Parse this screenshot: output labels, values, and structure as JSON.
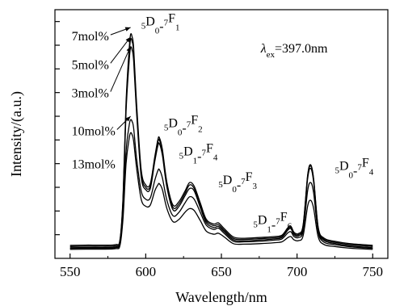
{
  "chart_data": {
    "type": "line",
    "xlabel": "Wavelength/nm",
    "ylabel": "Intensity/(a.u.)",
    "xlim": [
      540,
      760
    ],
    "ylim": [
      0,
      10.5
    ],
    "xticks": [
      550,
      600,
      650,
      700,
      750
    ],
    "yticks_count": 10,
    "y_tick_labels_shown": false,
    "excitation_label": {
      "symbol": "λ",
      "subscript": "ex",
      "value_text": "=397.0nm"
    },
    "transitions": [
      {
        "upper_level": "5",
        "upper_state": "D",
        "upper_sub": "0",
        "lower_level": "7",
        "lower_state": "F",
        "lower_sub": "1",
        "x": 597,
        "y": 9.5
      },
      {
        "upper_level": "5",
        "upper_state": "D",
        "upper_sub": "0",
        "lower_level": "7",
        "lower_state": "F",
        "lower_sub": "2",
        "x": 612,
        "y": 5.2
      },
      {
        "upper_level": "5",
        "upper_state": "D",
        "upper_sub": "1",
        "lower_level": "7",
        "lower_state": "F",
        "lower_sub": "4",
        "x": 622,
        "y": 4.0
      },
      {
        "upper_level": "5",
        "upper_state": "D",
        "upper_sub": "0",
        "lower_level": "7",
        "lower_state": "F",
        "lower_sub": "3",
        "x": 648,
        "y": 2.8
      },
      {
        "upper_level": "5",
        "upper_state": "D",
        "upper_sub": "1",
        "lower_level": "7",
        "lower_state": "F",
        "lower_sub": "6",
        "x": 671,
        "y": 1.1
      },
      {
        "upper_level": "5",
        "upper_state": "D",
        "upper_sub": "0",
        "lower_level": "7",
        "lower_state": "F",
        "lower_sub": "4",
        "x": 725,
        "y": 3.4
      }
    ],
    "concentration_labels": [
      {
        "text": "7mol%",
        "x": 551,
        "y": 9.2,
        "arrow_to": [
          590,
          9.75
        ]
      },
      {
        "text": "5mol%",
        "x": 551,
        "y": 8.0,
        "arrow_to": [
          590,
          9.35
        ]
      },
      {
        "text": "3mol%",
        "x": 551,
        "y": 6.8,
        "arrow_to": [
          590,
          8.95
        ]
      },
      {
        "text": "10mol%",
        "x": 551,
        "y": 5.2,
        "arrow_to": [
          590,
          6.0
        ]
      },
      {
        "text": "13mol%",
        "x": 551,
        "y": 3.8,
        "arrow_to": null
      }
    ],
    "x_grid": [
      550,
      560,
      570,
      580,
      583,
      585,
      587,
      589,
      590,
      591,
      592,
      594,
      597,
      600,
      603,
      606,
      608,
      609,
      611,
      614,
      618,
      622,
      626,
      629,
      632,
      636,
      640,
      645,
      648,
      652,
      658,
      665,
      675,
      685,
      690,
      694,
      696,
      698,
      701,
      704,
      707,
      709,
      711,
      714,
      718,
      725,
      735,
      750
    ],
    "series": [
      {
        "values": [
          0.55,
          0.56,
          0.56,
          0.58,
          0.8,
          2.6,
          6.6,
          8.8,
          9.45,
          9.35,
          8.9,
          6.5,
          3.75,
          3.1,
          3.15,
          4.3,
          5.0,
          5.1,
          4.6,
          3.2,
          2.25,
          2.4,
          2.85,
          3.2,
          3.05,
          2.35,
          1.65,
          1.45,
          1.5,
          1.25,
          0.9,
          0.85,
          0.88,
          0.92,
          0.98,
          1.3,
          1.35,
          1.1,
          1.05,
          1.4,
          3.5,
          3.95,
          3.35,
          1.3,
          0.85,
          0.72,
          0.62,
          0.55
        ]
      },
      {
        "values": [
          0.5,
          0.51,
          0.51,
          0.53,
          0.75,
          2.5,
          6.4,
          8.6,
          9.25,
          9.15,
          8.7,
          6.3,
          3.6,
          3.0,
          3.05,
          4.2,
          4.9,
          5.0,
          4.5,
          3.1,
          2.15,
          2.3,
          2.75,
          3.1,
          2.95,
          2.25,
          1.58,
          1.38,
          1.42,
          1.18,
          0.84,
          0.8,
          0.83,
          0.87,
          0.93,
          1.25,
          1.3,
          1.05,
          1.0,
          1.35,
          3.45,
          3.9,
          3.3,
          1.25,
          0.8,
          0.68,
          0.58,
          0.5
        ]
      },
      {
        "values": [
          0.45,
          0.46,
          0.46,
          0.48,
          0.7,
          2.4,
          6.2,
          8.3,
          8.9,
          8.8,
          8.35,
          6.1,
          3.45,
          2.9,
          2.95,
          4.1,
          4.75,
          4.85,
          4.35,
          3.0,
          2.05,
          2.2,
          2.65,
          2.95,
          2.85,
          2.15,
          1.5,
          1.3,
          1.35,
          1.12,
          0.78,
          0.74,
          0.77,
          0.82,
          0.88,
          1.2,
          1.25,
          1.0,
          0.95,
          1.3,
          3.35,
          3.8,
          3.2,
          1.2,
          0.75,
          0.63,
          0.53,
          0.45
        ]
      },
      {
        "values": [
          0.42,
          0.43,
          0.43,
          0.45,
          0.62,
          1.9,
          4.5,
          5.6,
          5.85,
          5.78,
          5.5,
          4.2,
          2.85,
          2.5,
          2.55,
          3.3,
          3.7,
          3.75,
          3.4,
          2.45,
          1.8,
          1.95,
          2.35,
          2.6,
          2.5,
          1.95,
          1.4,
          1.22,
          1.28,
          1.05,
          0.72,
          0.7,
          0.72,
          0.77,
          0.82,
          1.08,
          1.12,
          0.92,
          0.88,
          1.15,
          2.85,
          3.2,
          2.75,
          1.1,
          0.68,
          0.58,
          0.49,
          0.42
        ]
      },
      {
        "values": [
          0.38,
          0.39,
          0.39,
          0.41,
          0.55,
          1.7,
          4.0,
          5.05,
          5.3,
          5.22,
          4.95,
          3.8,
          2.5,
          2.2,
          2.25,
          2.85,
          3.1,
          3.15,
          2.9,
          2.1,
          1.55,
          1.65,
          1.95,
          2.1,
          2.02,
          1.6,
          1.15,
          1.02,
          1.06,
          0.9,
          0.62,
          0.6,
          0.62,
          0.66,
          0.7,
          0.88,
          0.92,
          0.78,
          0.75,
          0.95,
          2.2,
          2.45,
          2.1,
          0.9,
          0.58,
          0.5,
          0.43,
          0.38
        ]
      }
    ]
  }
}
